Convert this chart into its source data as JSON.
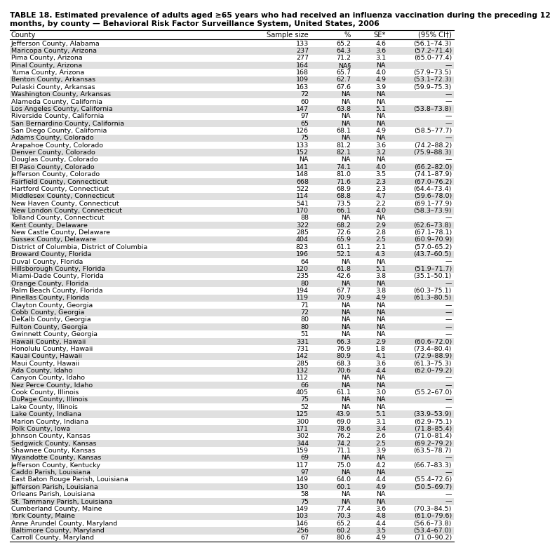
{
  "title_line1": "TABLE 18. Estimated prevalence of adults aged ≥65 years who had received an influenza vaccination during the preceding 12",
  "title_line2": "months, by county — Behavioral Risk Factor Surveillance System, United States, 2006",
  "headers": [
    "County",
    "Sample size",
    "%",
    "SE*",
    "(95% CI†)"
  ],
  "rows": [
    [
      "Jefferson County, Alabama",
      "133",
      "65.2",
      "4.6",
      "(56.1–74.3)"
    ],
    [
      "Maricopa County, Arizona",
      "237",
      "64.3",
      "3.6",
      "(57.2–71.4)"
    ],
    [
      "Pima County, Arizona",
      "277",
      "71.2",
      "3.1",
      "(65.0–77.4)"
    ],
    [
      "Pinal County, Arizona",
      "164",
      "NA§",
      "NA",
      "—"
    ],
    [
      "Yuma County, Arizona",
      "168",
      "65.7",
      "4.0",
      "(57.9–73.5)"
    ],
    [
      "Benton County, Arkansas",
      "109",
      "62.7",
      "4.9",
      "(53.1–72.3)"
    ],
    [
      "Pulaski County, Arkansas",
      "163",
      "67.6",
      "3.9",
      "(59.9–75.3)"
    ],
    [
      "Washington County, Arkansas",
      "72",
      "NA",
      "NA",
      "—"
    ],
    [
      "Alameda County, California",
      "60",
      "NA",
      "NA",
      "—"
    ],
    [
      "Los Angeles County, California",
      "147",
      "63.8",
      "5.1",
      "(53.8–73.8)"
    ],
    [
      "Riverside County, California",
      "97",
      "NA",
      "NA",
      "—"
    ],
    [
      "San Bernardino County, California",
      "65",
      "NA",
      "NA",
      "—"
    ],
    [
      "San Diego County, California",
      "126",
      "68.1",
      "4.9",
      "(58.5–77.7)"
    ],
    [
      "Adams County, Colorado",
      "75",
      "NA",
      "NA",
      "—"
    ],
    [
      "Arapahoe County, Colorado",
      "133",
      "81.2",
      "3.6",
      "(74.2–88.2)"
    ],
    [
      "Denver County, Colorado",
      "152",
      "82.1",
      "3.2",
      "(75.9–88.3)"
    ],
    [
      "Douglas County, Colorado",
      "NA",
      "NA",
      "NA",
      "—"
    ],
    [
      "El Paso County, Colorado",
      "141",
      "74.1",
      "4.0",
      "(66.2–82.0)"
    ],
    [
      "Jefferson County, Colorado",
      "148",
      "81.0",
      "3.5",
      "(74.1–87.9)"
    ],
    [
      "Fairfield County, Connecticut",
      "668",
      "71.6",
      "2.3",
      "(67.0–76.2)"
    ],
    [
      "Hartford County, Connecticut",
      "522",
      "68.9",
      "2.3",
      "(64.4–73.4)"
    ],
    [
      "Middlesex County, Connecticut",
      "114",
      "68.8",
      "4.7",
      "(59.6–78.0)"
    ],
    [
      "New Haven County, Connecticut",
      "541",
      "73.5",
      "2.2",
      "(69.1–77.9)"
    ],
    [
      "New London County, Connecticut",
      "170",
      "66.1",
      "4.0",
      "(58.3–73.9)"
    ],
    [
      "Tolland County, Connecticut",
      "88",
      "NA",
      "NA",
      "—"
    ],
    [
      "Kent County, Delaware",
      "322",
      "68.2",
      "2.9",
      "(62.6–73.8)"
    ],
    [
      "New Castle County, Delaware",
      "285",
      "72.6",
      "2.8",
      "(67.1–78.1)"
    ],
    [
      "Sussex County, Delaware",
      "404",
      "65.9",
      "2.5",
      "(60.9–70.9)"
    ],
    [
      "District of Columbia, District of Columbia",
      "823",
      "61.1",
      "2.1",
      "(57.0–65.2)"
    ],
    [
      "Broward County, Florida",
      "196",
      "52.1",
      "4.3",
      "(43.7–60.5)"
    ],
    [
      "Duval County, Florida",
      "64",
      "NA",
      "NA",
      "—"
    ],
    [
      "Hillsborough County, Florida",
      "120",
      "61.8",
      "5.1",
      "(51.9–71.7)"
    ],
    [
      "Miami-Dade County, Florida",
      "235",
      "42.6",
      "3.8",
      "(35.1–50.1)"
    ],
    [
      "Orange County, Florida",
      "80",
      "NA",
      "NA",
      "—"
    ],
    [
      "Palm Beach County, Florida",
      "194",
      "67.7",
      "3.8",
      "(60.3–75.1)"
    ],
    [
      "Pinellas County, Florida",
      "119",
      "70.9",
      "4.9",
      "(61.3–80.5)"
    ],
    [
      "Clayton County, Georgia",
      "71",
      "NA",
      "NA",
      "—"
    ],
    [
      "Cobb County, Georgia",
      "72",
      "NA",
      "NA",
      "—"
    ],
    [
      "DeKalb County, Georgia",
      "80",
      "NA",
      "NA",
      "—"
    ],
    [
      "Fulton County, Georgia",
      "80",
      "NA",
      "NA",
      "—"
    ],
    [
      "Gwinnett County, Georgia",
      "51",
      "NA",
      "NA",
      "—"
    ],
    [
      "Hawaii County, Hawaii",
      "331",
      "66.3",
      "2.9",
      "(60.6–72.0)"
    ],
    [
      "Honolulu County, Hawaii",
      "731",
      "76.9",
      "1.8",
      "(73.4–80.4)"
    ],
    [
      "Kauai County, Hawaii",
      "142",
      "80.9",
      "4.1",
      "(72.9–88.9)"
    ],
    [
      "Maui County, Hawaii",
      "285",
      "68.3",
      "3.6",
      "(61.3–75.3)"
    ],
    [
      "Ada County, Idaho",
      "132",
      "70.6",
      "4.4",
      "(62.0–79.2)"
    ],
    [
      "Canyon County, Idaho",
      "112",
      "NA",
      "NA",
      "—"
    ],
    [
      "Nez Perce County, Idaho",
      "66",
      "NA",
      "NA",
      "—"
    ],
    [
      "Cook County, Illinois",
      "405",
      "61.1",
      "3.0",
      "(55.2–67.0)"
    ],
    [
      "DuPage County, Illinois",
      "75",
      "NA",
      "NA",
      "—"
    ],
    [
      "Lake County, Illinois",
      "52",
      "NA",
      "NA",
      "—"
    ],
    [
      "Lake County, Indiana",
      "125",
      "43.9",
      "5.1",
      "(33.9–53.9)"
    ],
    [
      "Marion County, Indiana",
      "300",
      "69.0",
      "3.1",
      "(62.9–75.1)"
    ],
    [
      "Polk County, Iowa",
      "171",
      "78.6",
      "3.4",
      "(71.8–85.4)"
    ],
    [
      "Johnson County, Kansas",
      "302",
      "76.2",
      "2.6",
      "(71.0–81.4)"
    ],
    [
      "Sedgwick County, Kansas",
      "344",
      "74.2",
      "2.5",
      "(69.2–79.2)"
    ],
    [
      "Shawnee County, Kansas",
      "159",
      "71.1",
      "3.9",
      "(63.5–78.7)"
    ],
    [
      "Wyandotte County, Kansas",
      "69",
      "NA",
      "NA",
      "—"
    ],
    [
      "Jefferson County, Kentucky",
      "117",
      "75.0",
      "4.2",
      "(66.7–83.3)"
    ],
    [
      "Caddo Parish, Louisiana",
      "97",
      "NA",
      "NA",
      "—"
    ],
    [
      "East Baton Rouge Parish, Louisiana",
      "149",
      "64.0",
      "4.4",
      "(55.4–72.6)"
    ],
    [
      "Jefferson Parish, Louisiana",
      "130",
      "60.1",
      "4.9",
      "(50.5–69.7)"
    ],
    [
      "Orleans Parish, Louisiana",
      "58",
      "NA",
      "NA",
      "—"
    ],
    [
      "St. Tammany Parish, Louisiana",
      "75",
      "NA",
      "NA",
      "—"
    ],
    [
      "Cumberland County, Maine",
      "149",
      "77.4",
      "3.6",
      "(70.3–84.5)"
    ],
    [
      "York County, Maine",
      "103",
      "70.3",
      "4.8",
      "(61.0–79.6)"
    ],
    [
      "Anne Arundel County, Maryland",
      "146",
      "65.2",
      "4.4",
      "(56.6–73.8)"
    ],
    [
      "Baltimore County, Maryland",
      "256",
      "60.2",
      "3.5",
      "(53.4–67.0)"
    ],
    [
      "Carroll County, Maryland",
      "67",
      "80.6",
      "4.9",
      "(71.0–90.2)"
    ]
  ],
  "font_size": 6.8,
  "header_font_size": 7.2,
  "title_font_size": 7.8,
  "bg_color_even": "#e0e0e0"
}
